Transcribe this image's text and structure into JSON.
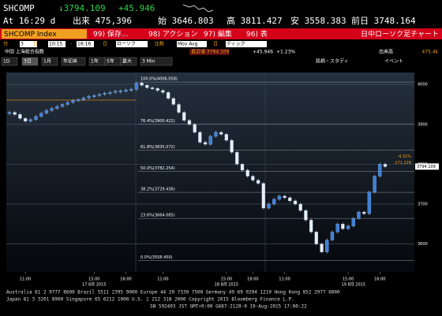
{
  "header": {
    "ticker": "SHCOMP",
    "last": "↓3794.109",
    "change": "+45.946",
    "time": "At 16:29 d",
    "volume": "出来 475,396",
    "open": "始 3646.803",
    "high": "高 3811.427",
    "low": "安 3558.383",
    "prev_close": "前日 3748.164"
  },
  "toolbar": {
    "security": "SHCOMP Index",
    "buttons": [
      "99) 保存...",
      "98) アクション",
      "97) 編集",
      "96) 表"
    ],
    "view_title": "日中ローソク足チャート",
    "settings": [
      "分",
      "3",
      "日",
      "10:15",
      "-",
      "16:16",
      "日",
      "ローソク",
      "比較",
      "Mov Avg",
      "日",
      "ティック"
    ]
  },
  "legend_bar": {
    "name": "中国 上海総合指数",
    "last": "直近値 3794.109",
    "change": "+45.946",
    "change_pct": "+1.23%",
    "volume_label": "出来高",
    "volume": "475.4k"
  },
  "tabs": [
    "1D",
    "3日",
    "1月",
    "年初来",
    "1年",
    "5年",
    "最大",
    "3 Min"
  ],
  "study": "銘柄・スタディ",
  "events": "イベント",
  "chart_data": {
    "type": "candle-close",
    "color": "#3d7fd9",
    "values": [
      3930,
      3925,
      3915,
      3908,
      3912,
      3920,
      3928,
      3935,
      3940,
      3945,
      3950,
      3955,
      3960,
      3962,
      3966,
      3970,
      3972,
      3975,
      3978,
      3980,
      3983,
      3984,
      3986,
      3988,
      4004,
      3998,
      3992,
      3990,
      3985,
      3980,
      3965,
      3950,
      3930,
      3910,
      3900,
      3880,
      3855,
      3850,
      3870,
      3880,
      3875,
      3860,
      3830,
      3800,
      3785,
      3770,
      3760,
      3752,
      3690,
      3700,
      3712,
      3720,
      3716,
      3708,
      3700,
      3684,
      3660,
      3630,
      3600,
      3580,
      3610,
      3630,
      3650,
      3638,
      3645,
      3664,
      3680,
      3676,
      3730,
      3770,
      3800,
      3794
    ],
    "ylim": [
      3530,
      4030
    ],
    "yticks": [
      3600,
      3700,
      3800,
      3900,
      4000
    ],
    "grid": true,
    "xlim": [
      0,
      71
    ],
    "xticks": [
      {
        "value": 3,
        "label": "11:00"
      },
      {
        "value": 16,
        "label": "15:00"
      },
      {
        "value": 22,
        "label": "16:00"
      },
      {
        "value": 29,
        "label": "11:00"
      },
      {
        "value": 41,
        "label": "15:00"
      },
      {
        "value": 46,
        "label": "16:00"
      },
      {
        "value": 52,
        "label": "11:00"
      },
      {
        "value": 64,
        "label": "15:00"
      },
      {
        "value": 70,
        "label": "16:00"
      }
    ],
    "date_labels": [
      {
        "value": 16,
        "label": "17 8月 2015"
      },
      {
        "value": 41,
        "label": "18 8月 2015"
      },
      {
        "value": 65,
        "label": "19 8月 2015"
      }
    ],
    "fib_levels": [
      {
        "value": 4006.058,
        "label": "100.0%(4006.058)"
      },
      {
        "value": 3900.422,
        "label": "76.4%(3900.422)"
      },
      {
        "value": 3835.072,
        "label": "61.8%(3835.072)"
      },
      {
        "value": 3782.254,
        "label": "50.0%(3782.254)"
      },
      {
        "value": 3729.436,
        "label": "38.2%(3729.436)"
      },
      {
        "value": 3664.085,
        "label": "23.6%(3664.085)"
      },
      {
        "value": 3558.45,
        "label": "0.0%(3558.450)"
      }
    ],
    "last_value": 3794.109,
    "change_pct": "-4.32%",
    "change": -171.226
  },
  "footer": [
    "Australia 61 2 9777 8600 Brazil 5511 2395 9000 Europe 44 20 7330 7500 Germany 49 69 9204 1210 Hong Kong 852 2977 6000",
    "Japan 81 3 3201 8900        Singapore 65 6212 1000        U.S. 1 212 318 2000        Copyright 2015 Bloomberg Finance L.P.",
    "SN 592403 JST  GMT+9:00 G687-2128-0 19-Aug-2015 17:00:22"
  ]
}
